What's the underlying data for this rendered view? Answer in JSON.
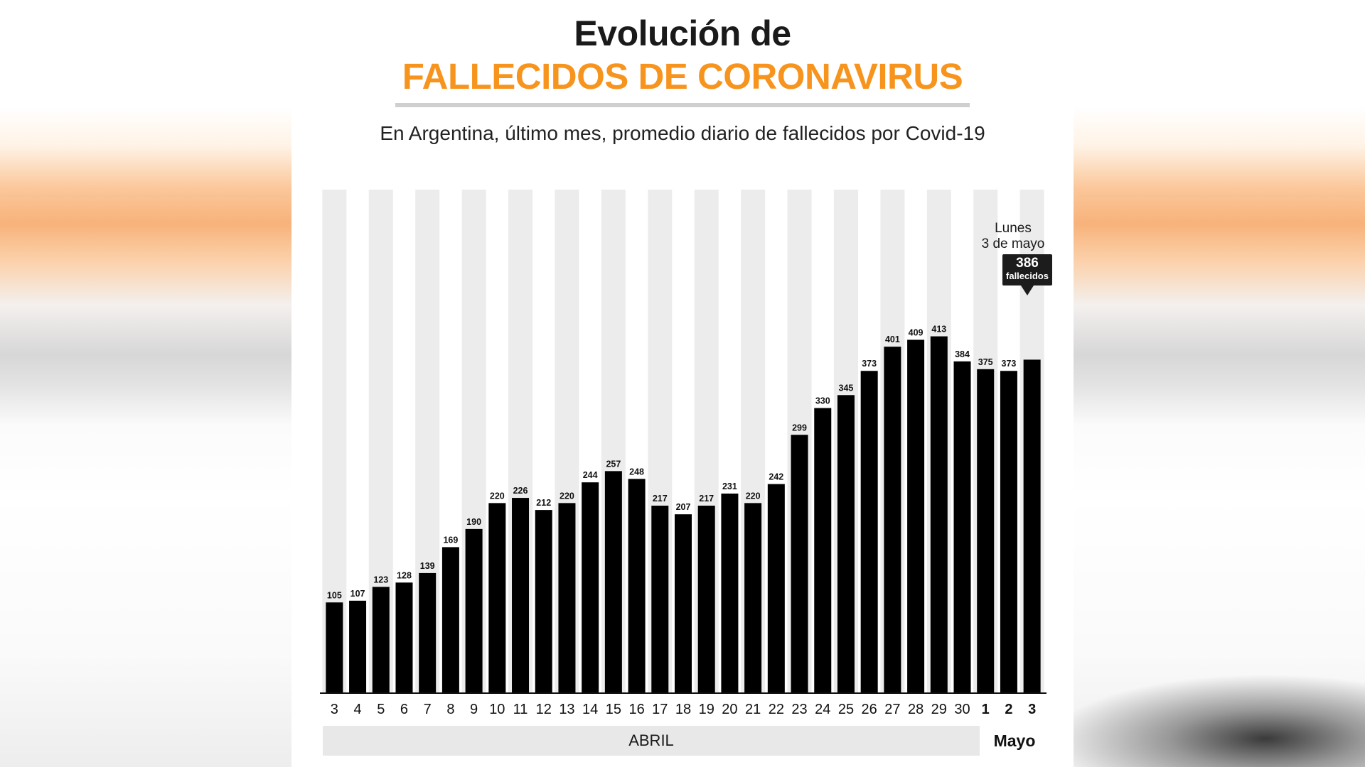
{
  "header": {
    "title_line1": "Evolución de",
    "title_line2": "FALLECIDOS DE CORONAVIRUS",
    "subtitle": "En Argentina, último mes, promedio diario de fallecidos por Covid-19"
  },
  "colors": {
    "title_accent": "#f7941d",
    "bar": "#000000",
    "stripe": "#ececec",
    "callout_bg": "#1c1c1c"
  },
  "annotation": {
    "note_line1": "Lunes",
    "note_line2": "3 de mayo",
    "value": "386",
    "unit": "fallecidos"
  },
  "months": {
    "april": "ABRIL",
    "may": "Mayo"
  },
  "chart_data": {
    "type": "bar",
    "title": "Evolución de FALLECIDOS DE CORONAVIRUS",
    "subtitle": "En Argentina, último mes, promedio diario de fallecidos por Covid-19",
    "categories": [
      "3",
      "4",
      "5",
      "6",
      "7",
      "8",
      "9",
      "10",
      "11",
      "12",
      "13",
      "14",
      "15",
      "16",
      "17",
      "18",
      "19",
      "20",
      "21",
      "22",
      "23",
      "24",
      "25",
      "26",
      "27",
      "28",
      "29",
      "30",
      "1",
      "2",
      "3"
    ],
    "months": [
      "ABRIL",
      "ABRIL",
      "ABRIL",
      "ABRIL",
      "ABRIL",
      "ABRIL",
      "ABRIL",
      "ABRIL",
      "ABRIL",
      "ABRIL",
      "ABRIL",
      "ABRIL",
      "ABRIL",
      "ABRIL",
      "ABRIL",
      "ABRIL",
      "ABRIL",
      "ABRIL",
      "ABRIL",
      "ABRIL",
      "ABRIL",
      "ABRIL",
      "ABRIL",
      "ABRIL",
      "ABRIL",
      "ABRIL",
      "ABRIL",
      "ABRIL",
      "Mayo",
      "Mayo",
      "Mayo"
    ],
    "values": [
      105,
      107,
      123,
      128,
      139,
      169,
      190,
      220,
      226,
      212,
      220,
      244,
      257,
      248,
      217,
      207,
      217,
      231,
      220,
      242,
      299,
      330,
      345,
      373,
      401,
      409,
      413,
      384,
      375,
      373,
      386
    ],
    "value_labels_shown": [
      true,
      true,
      true,
      true,
      true,
      true,
      true,
      true,
      true,
      true,
      true,
      true,
      true,
      true,
      true,
      true,
      true,
      true,
      true,
      true,
      true,
      true,
      true,
      true,
      true,
      true,
      true,
      true,
      true,
      true,
      false
    ],
    "bold_ticks": [
      false,
      false,
      false,
      false,
      false,
      false,
      false,
      false,
      false,
      false,
      false,
      false,
      false,
      false,
      false,
      false,
      false,
      false,
      false,
      false,
      false,
      false,
      false,
      false,
      false,
      false,
      false,
      false,
      true,
      true,
      true
    ],
    "ylim": [
      0,
      480
    ],
    "xlabel": "",
    "ylabel": "",
    "grid": false,
    "legend": "none"
  }
}
